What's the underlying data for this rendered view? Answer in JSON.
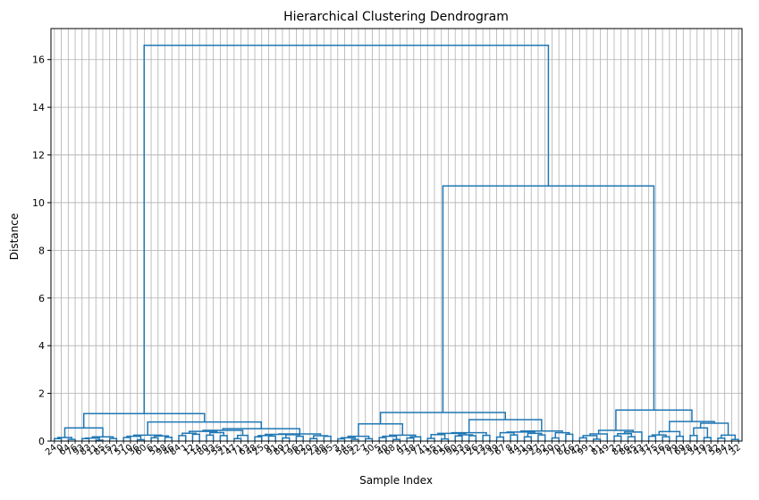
{
  "chart_data": {
    "type": "dendrogram",
    "title": "Hierarchical Clustering Dendrogram",
    "xlabel": "Sample Index",
    "ylabel": "Distance",
    "ylim": [
      0,
      17.3
    ],
    "y_ticks": [
      0,
      2,
      4,
      6,
      8,
      10,
      12,
      14,
      16
    ],
    "grid": true,
    "line_color": "#1f77b4",
    "grid_color": "#b0b0b0",
    "leaf_count": 100,
    "leaf_labels": [
      "24",
      "0",
      "64",
      "76",
      "93",
      "83",
      "11",
      "85",
      "15",
      "72",
      "57",
      "10",
      "36",
      "60",
      "6",
      "51",
      "98",
      "46",
      "84",
      "1",
      "12",
      "14",
      "80",
      "33",
      "55",
      "21",
      "47",
      "71",
      "63",
      "48",
      "25",
      "9",
      "91",
      "89",
      "17",
      "96",
      "62",
      "20",
      "23",
      "88",
      "95",
      "3",
      "54",
      "65",
      "22",
      "7",
      "30",
      "5",
      "40",
      "68",
      "4",
      "97",
      "38",
      "77",
      "41",
      "35",
      "61",
      "56",
      "90",
      "53",
      "18",
      "26",
      "13",
      "29",
      "39",
      "67",
      "8",
      "44",
      "31",
      "59",
      "27",
      "92",
      "50",
      "70",
      "87",
      "66",
      "42",
      "99",
      "1",
      "81",
      "49",
      "2",
      "82",
      "86",
      "45",
      "43",
      "37",
      "75",
      "16",
      "78",
      "79",
      "69",
      "28",
      "34",
      "19",
      "73",
      "52",
      "94",
      "74",
      "32"
    ],
    "merges": [
      {
        "l": 0,
        "r": 99,
        "h": 16.6
      },
      {
        "l": 0,
        "r": 40,
        "h": 1.15
      },
      {
        "l": 41,
        "r": 99,
        "h": 10.7
      },
      {
        "l": 41,
        "r": 75,
        "h": 1.2
      },
      {
        "l": 76,
        "r": 99,
        "h": 1.3
      },
      {
        "l": 0,
        "r": 9,
        "h": 0.55
      },
      {
        "l": 10,
        "r": 40,
        "h": 0.8
      },
      {
        "l": 0,
        "r": 3,
        "h": 0.15
      },
      {
        "l": 4,
        "r": 9,
        "h": 0.18
      },
      {
        "l": 10,
        "r": 17,
        "h": 0.25
      },
      {
        "l": 18,
        "r": 40,
        "h": 0.52
      },
      {
        "l": 18,
        "r": 28,
        "h": 0.45
      },
      {
        "l": 29,
        "r": 40,
        "h": 0.3
      },
      {
        "l": 41,
        "r": 53,
        "h": 0.72
      },
      {
        "l": 54,
        "r": 75,
        "h": 0.9
      },
      {
        "l": 41,
        "r": 46,
        "h": 0.2
      },
      {
        "l": 47,
        "r": 53,
        "h": 0.25
      },
      {
        "l": 54,
        "r": 63,
        "h": 0.35
      },
      {
        "l": 64,
        "r": 75,
        "h": 0.42
      },
      {
        "l": 76,
        "r": 85,
        "h": 0.45
      },
      {
        "l": 86,
        "r": 99,
        "h": 0.82
      },
      {
        "l": 76,
        "r": 80,
        "h": 0.3
      },
      {
        "l": 81,
        "r": 85,
        "h": 0.38
      },
      {
        "l": 86,
        "r": 91,
        "h": 0.4
      },
      {
        "l": 92,
        "r": 99,
        "h": 0.75
      },
      {
        "l": 92,
        "r": 95,
        "h": 0.55
      },
      {
        "l": 96,
        "r": 99,
        "h": 0.25
      }
    ]
  }
}
